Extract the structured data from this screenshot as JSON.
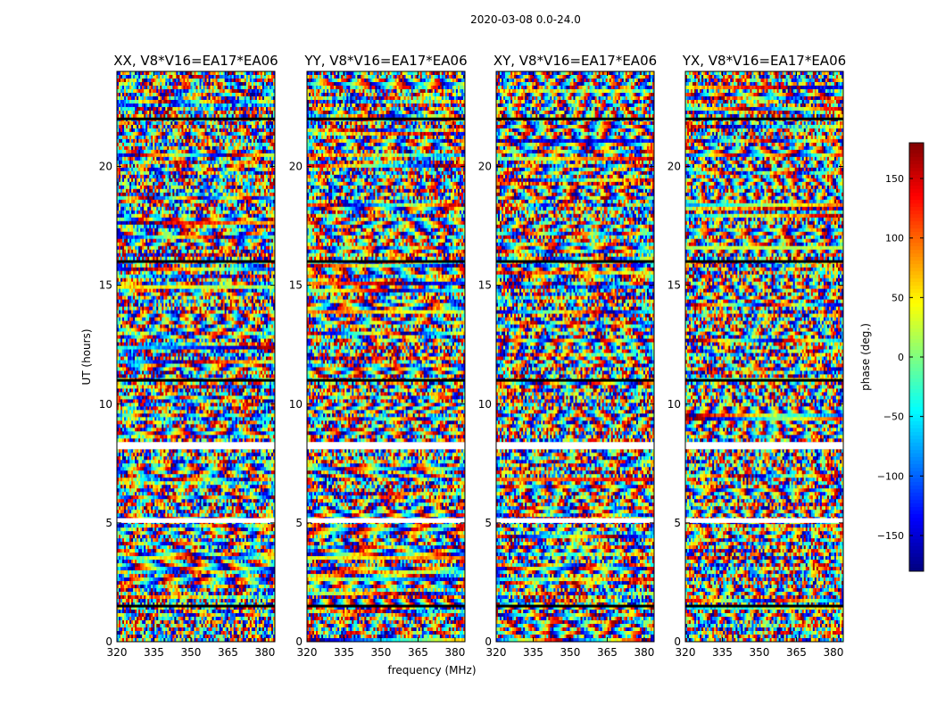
{
  "figure_title": "2020-03-08 0.0-24.0",
  "chart_data": {
    "type": "heatmap",
    "colormap": "jet",
    "ylabel": "UT (hours)",
    "xlabel": "frequency (MHz)",
    "xlim": [
      320,
      384
    ],
    "ylim": [
      0,
      24
    ],
    "xticks": [
      "320",
      "335",
      "350",
      "365",
      "380"
    ],
    "yticks": [
      "0",
      "5",
      "10",
      "15",
      "20"
    ],
    "colorbar": {
      "label": "phase (deg.)",
      "range": [
        -180,
        180
      ],
      "ticks": [
        "150",
        "100",
        "50",
        "0",
        "−50",
        "−100",
        "−150"
      ],
      "tick_values": [
        150,
        100,
        50,
        0,
        -50,
        -100,
        -150
      ]
    },
    "panels": [
      {
        "title": "XX, V8*V16=EA17*EA06"
      },
      {
        "title": "YY, V8*V16=EA17*EA06"
      },
      {
        "title": "XY, V8*V16=EA17*EA06"
      },
      {
        "title": "YX, V8*V16=EA17*EA06"
      }
    ],
    "blank_ut_ranges": [
      [
        8.1,
        8.4
      ],
      [
        5.0,
        5.2
      ]
    ],
    "black_ut_lines": [
      1.5,
      11.0,
      16.0,
      22.0
    ]
  }
}
